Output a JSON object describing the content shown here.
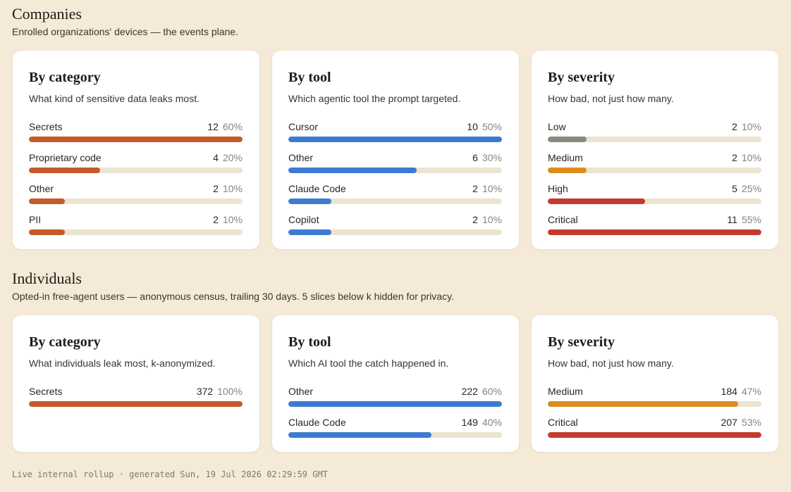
{
  "companies": {
    "title": "Companies",
    "subtitle": "Enrolled organizations' devices — the events plane.",
    "cards": [
      {
        "title": "By category",
        "description": "What kind of sensitive data leaks most.",
        "rows": [
          {
            "label": "Secrets",
            "count": "12",
            "percent": "60%",
            "fraction": 1.0,
            "color": "#c65a2a"
          },
          {
            "label": "Proprietary code",
            "count": "4",
            "percent": "20%",
            "fraction": 0.333,
            "color": "#c65a2a"
          },
          {
            "label": "Other",
            "count": "2",
            "percent": "10%",
            "fraction": 0.167,
            "color": "#c65a2a"
          },
          {
            "label": "PII",
            "count": "2",
            "percent": "10%",
            "fraction": 0.167,
            "color": "#c65a2a"
          }
        ]
      },
      {
        "title": "By tool",
        "description": "Which agentic tool the prompt targeted.",
        "rows": [
          {
            "label": "Cursor",
            "count": "10",
            "percent": "50%",
            "fraction": 1.0,
            "color": "#3d7bd1"
          },
          {
            "label": "Other",
            "count": "6",
            "percent": "30%",
            "fraction": 0.6,
            "color": "#3d7bd1"
          },
          {
            "label": "Claude Code",
            "count": "2",
            "percent": "10%",
            "fraction": 0.2,
            "color": "#3d7bd1"
          },
          {
            "label": "Copilot",
            "count": "2",
            "percent": "10%",
            "fraction": 0.2,
            "color": "#3d7bd1"
          }
        ]
      },
      {
        "title": "By severity",
        "description": "How bad, not just how many.",
        "rows": [
          {
            "label": "Low",
            "count": "2",
            "percent": "10%",
            "fraction": 0.18,
            "color": "#8a8a82"
          },
          {
            "label": "Medium",
            "count": "2",
            "percent": "10%",
            "fraction": 0.18,
            "color": "#d98d1f"
          },
          {
            "label": "High",
            "count": "5",
            "percent": "25%",
            "fraction": 0.455,
            "color": "#c43a2f"
          },
          {
            "label": "Critical",
            "count": "11",
            "percent": "55%",
            "fraction": 1.0,
            "color": "#c43a2f"
          }
        ]
      }
    ]
  },
  "individuals": {
    "title": "Individuals",
    "subtitle": "Opted-in free-agent users — anonymous census, trailing 30 days. 5 slices below k hidden for privacy.",
    "cards": [
      {
        "title": "By category",
        "description": "What individuals leak most, k-anonymized.",
        "rows": [
          {
            "label": "Secrets",
            "count": "372",
            "percent": "100%",
            "fraction": 1.0,
            "color": "#c65a2a"
          }
        ]
      },
      {
        "title": "By tool",
        "description": "Which AI tool the catch happened in.",
        "rows": [
          {
            "label": "Other",
            "count": "222",
            "percent": "60%",
            "fraction": 1.0,
            "color": "#3d7bd1"
          },
          {
            "label": "Claude Code",
            "count": "149",
            "percent": "40%",
            "fraction": 0.67,
            "color": "#3d7bd1"
          }
        ]
      },
      {
        "title": "By severity",
        "description": "How bad, not just how many.",
        "rows": [
          {
            "label": "Medium",
            "count": "184",
            "percent": "47%",
            "fraction": 0.89,
            "color": "#d98d1f"
          },
          {
            "label": "Critical",
            "count": "207",
            "percent": "53%",
            "fraction": 1.0,
            "color": "#c43a2f"
          }
        ]
      }
    ]
  },
  "footer": "Live internal rollup · generated Sun, 19 Jul 2026 02:29:59 GMT"
}
